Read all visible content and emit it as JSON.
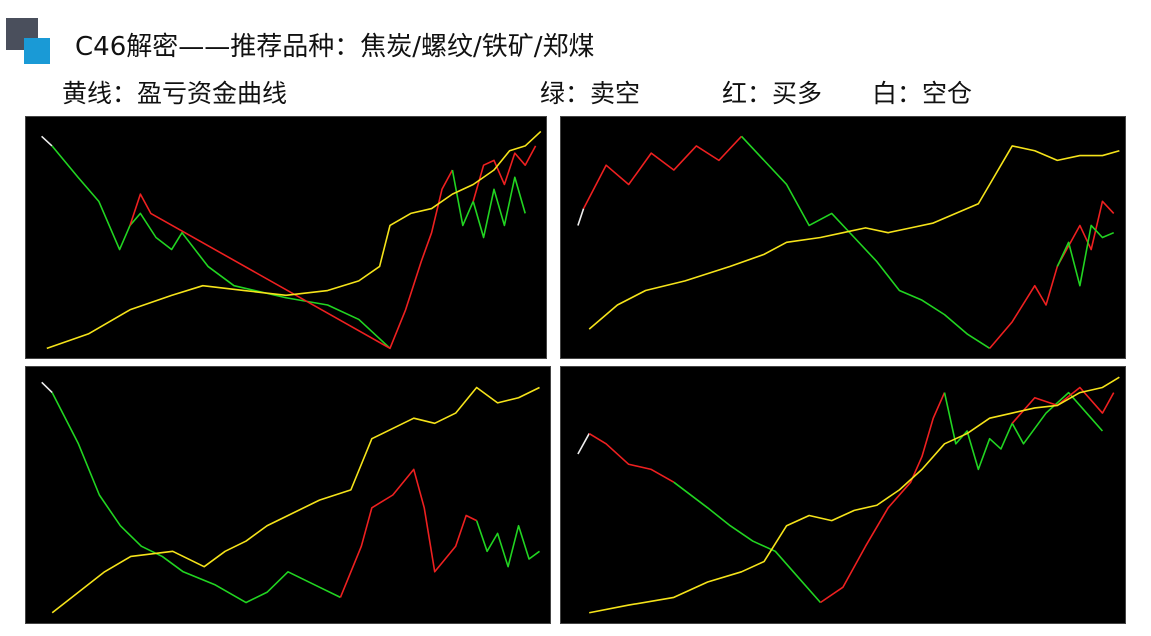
{
  "header": {
    "title": "C46解密——推荐品种：焦炭/螺纹/铁矿/郑煤"
  },
  "legend": {
    "yellow": "黄线：盈亏资金曲线",
    "green": "绿：卖空",
    "red": "红：买多",
    "white": "白：空仓"
  }
}
